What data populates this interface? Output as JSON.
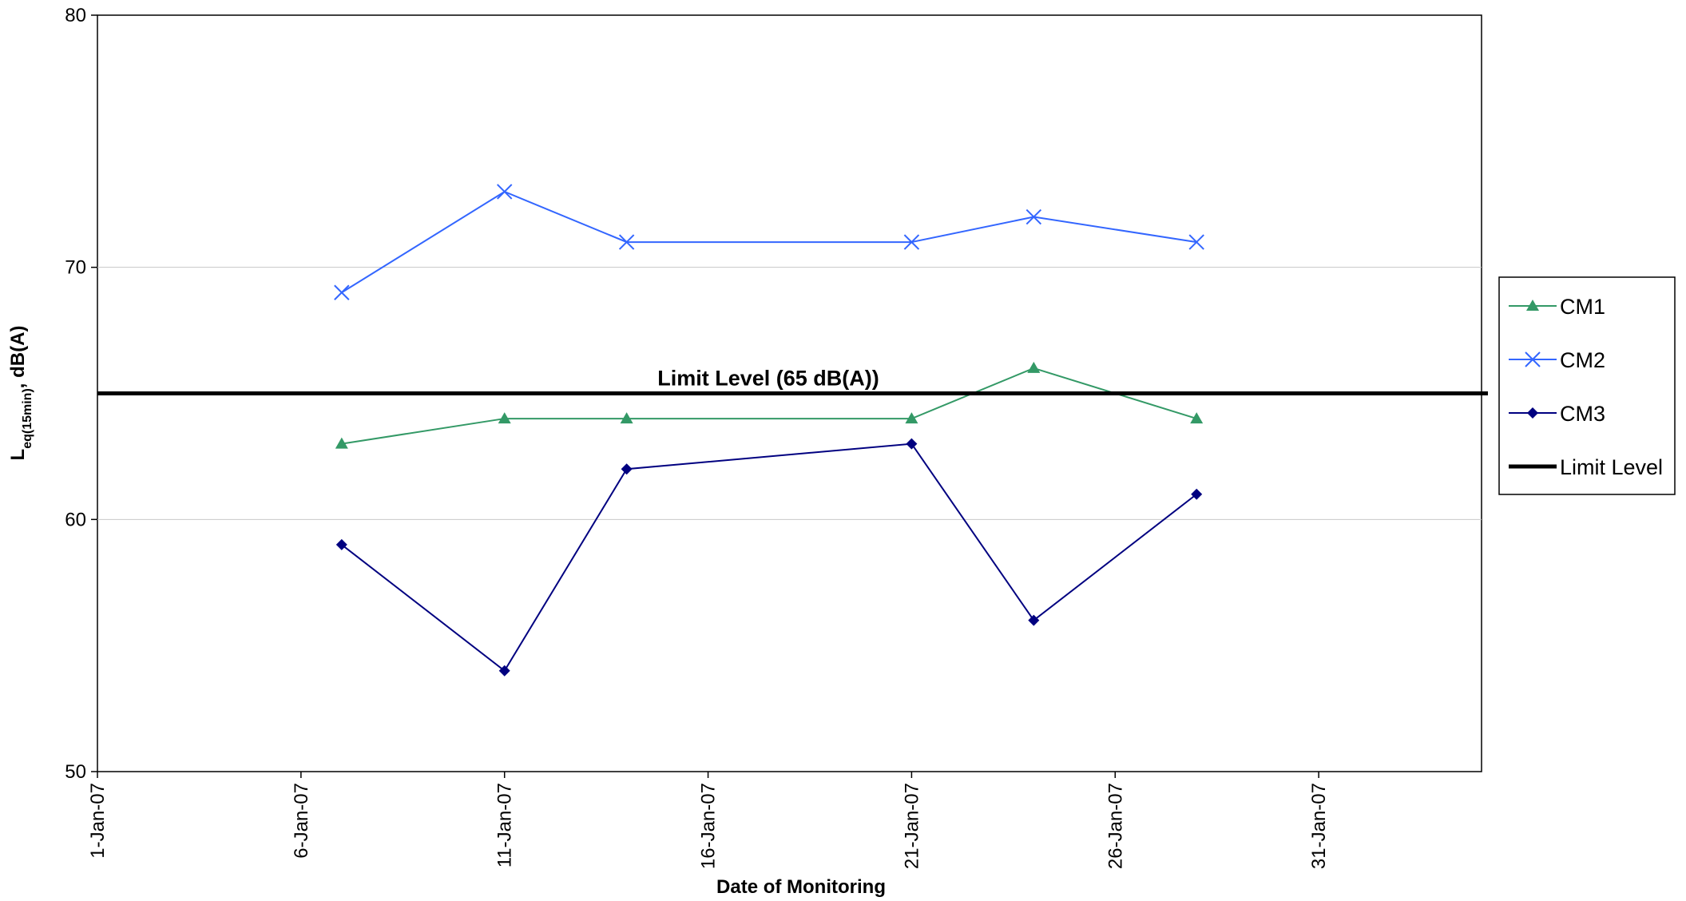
{
  "chart_data": {
    "type": "line",
    "title": "",
    "xlabel": "Date of Monitoring",
    "ylabel": {
      "main": "L",
      "sub": "eq(15min)",
      "suffix": ", dB(A)"
    },
    "ylim": [
      50,
      80
    ],
    "yticks": [
      50,
      60,
      70,
      80
    ],
    "xlim": [
      "2007-01-01",
      "2007-02-04"
    ],
    "xticks": [
      {
        "date": "2007-01-01",
        "label": "1-Jan-07"
      },
      {
        "date": "2007-01-06",
        "label": "6-Jan-07"
      },
      {
        "date": "2007-01-11",
        "label": "11-Jan-07"
      },
      {
        "date": "2007-01-16",
        "label": "16-Jan-07"
      },
      {
        "date": "2007-01-21",
        "label": "21-Jan-07"
      },
      {
        "date": "2007-01-26",
        "label": "26-Jan-07"
      },
      {
        "date": "2007-01-31",
        "label": "31-Jan-07"
      }
    ],
    "grid": "horizontal",
    "legend_position": "right",
    "series": [
      {
        "name": "CM1",
        "color": "#339966",
        "marker": "triangle",
        "x": [
          "2007-01-07",
          "2007-01-11",
          "2007-01-14",
          "2007-01-21",
          "2007-01-24",
          "2007-01-28"
        ],
        "y": [
          63,
          64,
          64,
          64,
          66,
          64
        ]
      },
      {
        "name": "CM2",
        "color": "#3366ff",
        "marker": "x",
        "x": [
          "2007-01-07",
          "2007-01-11",
          "2007-01-14",
          "2007-01-21",
          "2007-01-24",
          "2007-01-28"
        ],
        "y": [
          69,
          73,
          71,
          71,
          72,
          71
        ]
      },
      {
        "name": "CM3",
        "color": "#000080",
        "marker": "diamond",
        "x": [
          "2007-01-07",
          "2007-01-11",
          "2007-01-14",
          "2007-01-21",
          "2007-01-24",
          "2007-01-28"
        ],
        "y": [
          59,
          54,
          62,
          63,
          56,
          61
        ]
      }
    ],
    "limit": {
      "name": "Limit Level",
      "value": 65,
      "color": "#000000",
      "annotation": "Limit Level (65 dB(A))"
    }
  }
}
